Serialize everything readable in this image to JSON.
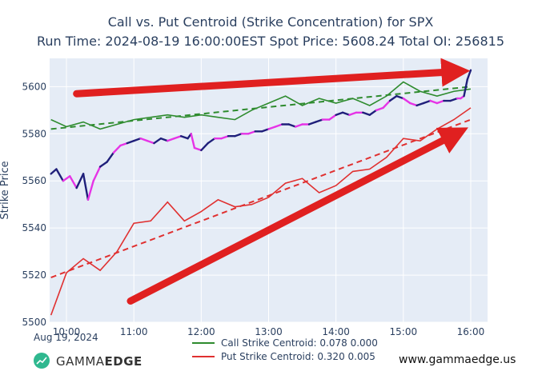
{
  "chart_data": {
    "type": "line",
    "title_line1": "Call vs. Put Centroid (Strike Concentration) for SPX",
    "title_line2": "Run Time: 2024-08-19 16:00:00EST Spot Price: 5608.24 Total OI: 256815",
    "ylabel": "Strike Price",
    "xlim": [
      9.75,
      16.25
    ],
    "ylim": [
      5500,
      5612
    ],
    "x_tick_labels": [
      "10:00",
      "11:00",
      "12:00",
      "13:00",
      "14:00",
      "15:00",
      "16:00"
    ],
    "x_tick_values": [
      10,
      11,
      12,
      13,
      14,
      15,
      16
    ],
    "x_date_label": "Aug 19, 2024",
    "y_ticks": [
      5500,
      5520,
      5540,
      5560,
      5580,
      5600
    ],
    "grid": true,
    "legend_position": "bottom-center",
    "series": [
      {
        "name": "Call Strike Centroid: 0.078 0.000",
        "color": "#2e8b2e",
        "x": [
          9.77,
          10.0,
          10.25,
          10.5,
          10.75,
          11.0,
          11.25,
          11.5,
          11.75,
          12.0,
          12.25,
          12.5,
          12.75,
          13.0,
          13.25,
          13.5,
          13.75,
          14.0,
          14.25,
          14.5,
          14.75,
          15.0,
          15.25,
          15.5,
          15.75,
          16.0
        ],
        "y": [
          5586,
          5583,
          5585,
          5582,
          5584,
          5586,
          5587,
          5588,
          5587,
          5588,
          5587,
          5586,
          5590,
          5593,
          5596,
          5592,
          5595,
          5593,
          5595,
          5592,
          5596,
          5602,
          5598,
          5596,
          5598,
          5599
        ]
      },
      {
        "name": "Put Strike Centroid: 0.320 0.005",
        "color": "#e03030",
        "x": [
          9.77,
          10.0,
          10.25,
          10.5,
          10.75,
          11.0,
          11.25,
          11.5,
          11.75,
          12.0,
          12.25,
          12.5,
          12.75,
          13.0,
          13.25,
          13.5,
          13.75,
          14.0,
          14.25,
          14.5,
          14.75,
          15.0,
          15.25,
          15.5,
          15.75,
          16.0
        ],
        "y": [
          5503,
          5521,
          5527,
          5522,
          5530,
          5542,
          5543,
          5551,
          5543,
          5547,
          5552,
          5549,
          5550,
          5553,
          5559,
          5561,
          5555,
          5558,
          5564,
          5565,
          5570,
          5578,
          5577,
          5582,
          5586,
          5591
        ]
      }
    ],
    "trend_lines": [
      {
        "series": "call",
        "color": "#2e8b2e",
        "x": [
          9.77,
          16.0
        ],
        "y": [
          5582,
          5600
        ]
      },
      {
        "series": "put",
        "color": "#e03030",
        "x": [
          9.77,
          16.0
        ],
        "y": [
          5519,
          5586
        ]
      }
    ],
    "spot_series": {
      "color_a": "#1f1f7a",
      "color_b": "#e633e6",
      "x": [
        9.77,
        9.85,
        9.95,
        10.05,
        10.15,
        10.25,
        10.32,
        10.4,
        10.5,
        10.6,
        10.7,
        10.8,
        10.9,
        11.0,
        11.1,
        11.2,
        11.3,
        11.4,
        11.5,
        11.6,
        11.7,
        11.8,
        11.85,
        11.9,
        12.0,
        12.1,
        12.2,
        12.3,
        12.4,
        12.5,
        12.6,
        12.7,
        12.8,
        12.9,
        13.0,
        13.1,
        13.2,
        13.3,
        13.4,
        13.5,
        13.6,
        13.7,
        13.8,
        13.9,
        14.0,
        14.1,
        14.2,
        14.3,
        14.4,
        14.5,
        14.6,
        14.7,
        14.8,
        14.9,
        15.0,
        15.1,
        15.2,
        15.3,
        15.4,
        15.5,
        15.6,
        15.7,
        15.8,
        15.85,
        15.9,
        15.95,
        16.0
      ],
      "y": [
        5563,
        5565,
        5560,
        5562,
        5557,
        5563,
        5552,
        5560,
        5566,
        5568,
        5572,
        5575,
        5576,
        5577,
        5578,
        5577,
        5576,
        5578,
        5577,
        5578,
        5579,
        5578,
        5580,
        5574,
        5573,
        5576,
        5578,
        5578,
        5579,
        5579,
        5580,
        5580,
        5581,
        5581,
        5582,
        5583,
        5584,
        5584,
        5583,
        5584,
        5584,
        5585,
        5586,
        5586,
        5588,
        5589,
        5588,
        5589,
        5589,
        5588,
        5590,
        5591,
        5594,
        5596,
        5595,
        5593,
        5592,
        5593,
        5594,
        5593,
        5594,
        5594,
        5595,
        5595,
        5596,
        5603,
        5607
      ]
    },
    "annotation_arrows": [
      {
        "color": "#e02020",
        "from": [
          10.15,
          5597
        ],
        "to": [
          15.95,
          5607
        ]
      },
      {
        "color": "#e02020",
        "from": [
          10.95,
          5509
        ],
        "to": [
          15.95,
          5580
        ]
      }
    ]
  },
  "branding": {
    "logo_text_a": "GAMMA",
    "logo_text_b": "EDGE",
    "website": "www.gammaedge.us"
  }
}
